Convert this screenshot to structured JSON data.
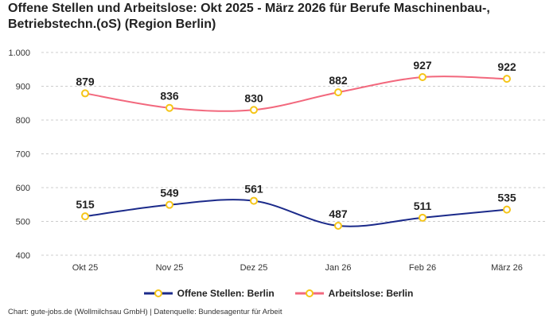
{
  "chart_data": {
    "type": "line",
    "title": "Offene Stellen und Arbeitslose: Okt 2025 - März 2026 für Berufe Maschinenbau-, Betriebstechn.(oS) (Region Berlin)",
    "categories": [
      "Okt 25",
      "Nov 25",
      "Dez 25",
      "Jan 26",
      "Feb 26",
      "März 26"
    ],
    "series": [
      {
        "name": "Offene Stellen: Berlin",
        "values": [
          515,
          549,
          561,
          487,
          511,
          535
        ],
        "color": "#1b2a8a"
      },
      {
        "name": "Arbeitslose: Berlin",
        "values": [
          879,
          836,
          830,
          882,
          927,
          922
        ],
        "color": "#f2687d"
      }
    ],
    "marker_color": "#f5c518",
    "ylim": [
      400,
      1000
    ],
    "yticks": [
      400,
      500,
      600,
      700,
      800,
      900,
      1000
    ],
    "ytick_labels": [
      "400",
      "500",
      "600",
      "700",
      "800",
      "900",
      "1.000"
    ],
    "grid": "horizontal dashed",
    "legend": "bottom-center",
    "xlabel": "",
    "ylabel": ""
  },
  "source": "Chart: gute-jobs.de (Wollmilchsau GmbH) | Datenquelle: Bundesagentur für Arbeit"
}
